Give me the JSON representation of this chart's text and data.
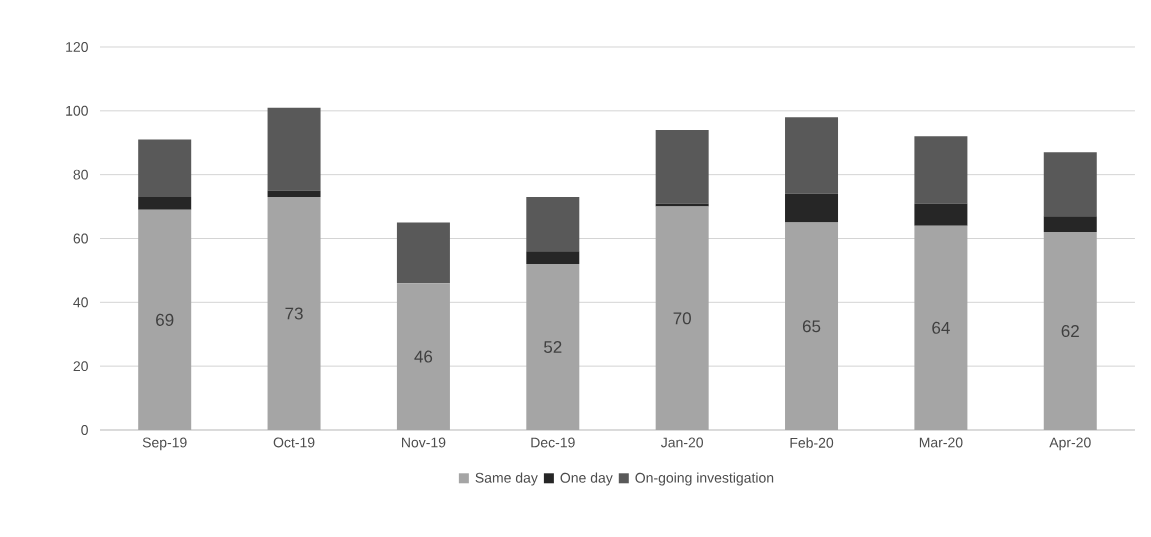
{
  "chart_data": {
    "type": "bar",
    "stacked": true,
    "categories": [
      "Sep-19",
      "Oct-19",
      "Nov-19",
      "Dec-19",
      "Jan-20",
      "Feb-20",
      "Mar-20",
      "Apr-20"
    ],
    "series": [
      {
        "name": "Same day",
        "color": "#a5a5a5",
        "values": [
          69,
          73,
          46,
          52,
          70,
          65,
          64,
          62
        ],
        "value_labels": [
          "69",
          "73",
          "46",
          "52",
          "70",
          "65",
          "64",
          "62"
        ]
      },
      {
        "name": "One day",
        "color": "#262626",
        "values": [
          4,
          2,
          0,
          4,
          1,
          9,
          7,
          5
        ]
      },
      {
        "name": "On-going investigation",
        "color": "#595959",
        "values": [
          18,
          26,
          19,
          17,
          23,
          24,
          21,
          20
        ]
      }
    ],
    "ylim": [
      0,
      120
    ],
    "yticks": [
      0,
      20,
      40,
      60,
      80,
      100,
      120
    ],
    "grid": "y",
    "legend": "bottom"
  }
}
